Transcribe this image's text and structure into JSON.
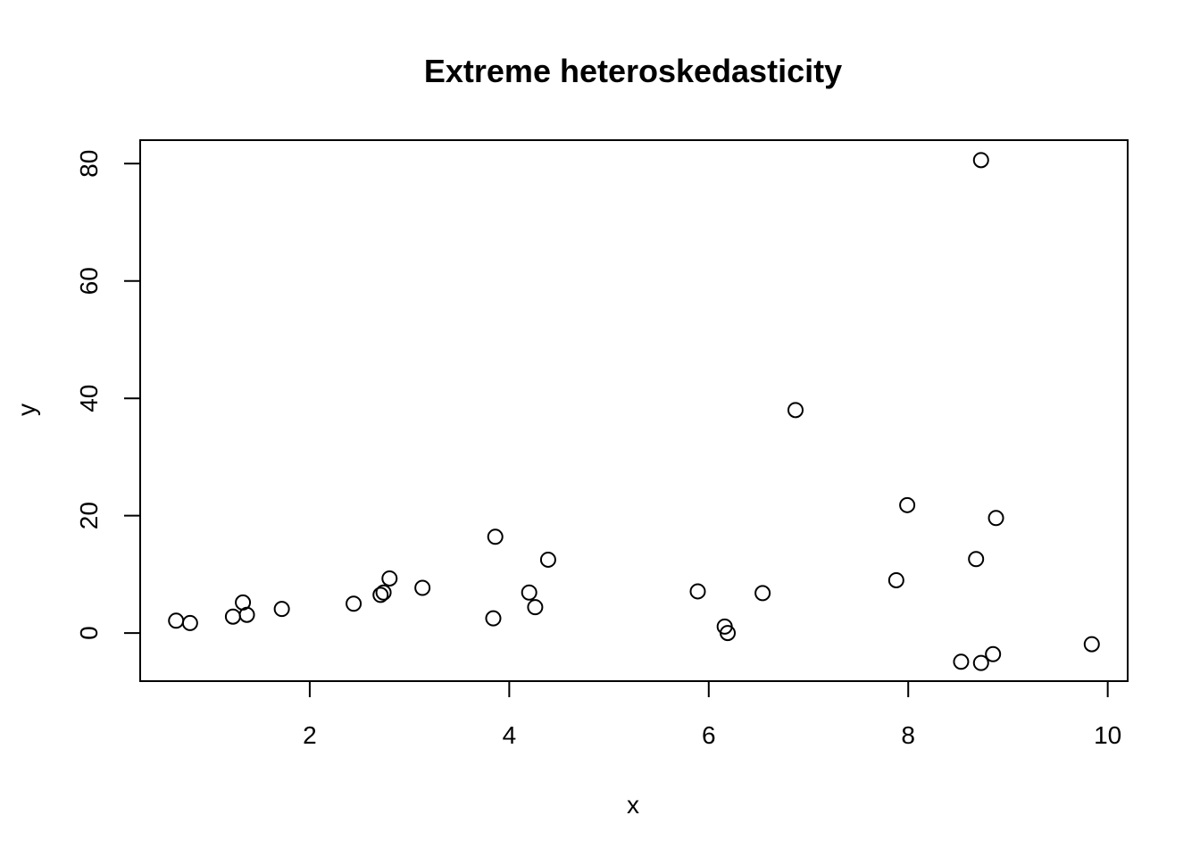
{
  "chart_data": {
    "type": "scatter",
    "title": "Extreme heteroskedasticity",
    "xlabel": "x",
    "ylabel": "y",
    "xlim": [
      0.3,
      10.2
    ],
    "ylim": [
      -8.2,
      84
    ],
    "xticks": [
      2,
      4,
      6,
      8,
      10
    ],
    "yticks": [
      0,
      20,
      40,
      60,
      80
    ],
    "xtick_labels": [
      "2",
      "4",
      "6",
      "8",
      "10"
    ],
    "ytick_labels": [
      "0",
      "20",
      "40",
      "60",
      "80"
    ],
    "grid": false,
    "legend": false,
    "marker": "open-circle",
    "points": [
      {
        "x": 0.66,
        "y": 2.1
      },
      {
        "x": 0.8,
        "y": 1.7
      },
      {
        "x": 1.23,
        "y": 2.8
      },
      {
        "x": 1.33,
        "y": 5.2
      },
      {
        "x": 1.37,
        "y": 3.1
      },
      {
        "x": 1.72,
        "y": 4.1
      },
      {
        "x": 2.44,
        "y": 5.0
      },
      {
        "x": 2.71,
        "y": 6.5
      },
      {
        "x": 2.74,
        "y": 6.9
      },
      {
        "x": 2.8,
        "y": 9.3
      },
      {
        "x": 3.13,
        "y": 7.7
      },
      {
        "x": 3.84,
        "y": 2.5
      },
      {
        "x": 3.86,
        "y": 16.4
      },
      {
        "x": 4.2,
        "y": 6.9
      },
      {
        "x": 4.26,
        "y": 4.4
      },
      {
        "x": 4.39,
        "y": 12.5
      },
      {
        "x": 5.89,
        "y": 7.1
      },
      {
        "x": 6.16,
        "y": 1.1
      },
      {
        "x": 6.19,
        "y": 0.0
      },
      {
        "x": 6.54,
        "y": 6.8
      },
      {
        "x": 6.87,
        "y": 38.0
      },
      {
        "x": 7.88,
        "y": 9.0
      },
      {
        "x": 7.99,
        "y": 21.8
      },
      {
        "x": 8.53,
        "y": -4.9
      },
      {
        "x": 8.68,
        "y": 12.6
      },
      {
        "x": 8.73,
        "y": -5.1
      },
      {
        "x": 8.73,
        "y": 80.6
      },
      {
        "x": 8.85,
        "y": -3.6
      },
      {
        "x": 8.88,
        "y": 19.6
      },
      {
        "x": 9.84,
        "y": -1.9
      }
    ]
  }
}
